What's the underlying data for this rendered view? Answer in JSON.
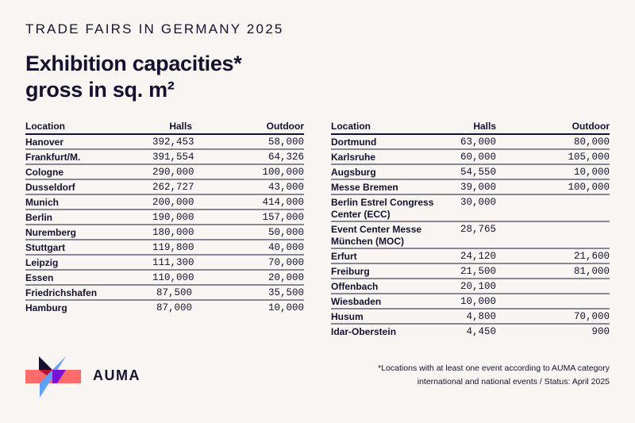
{
  "header": {
    "kicker": "TRADE FAIRS IN GERMANY 2025",
    "title_line1": "Exhibition capacities*",
    "title_line2": "gross in sq. m²"
  },
  "columns": {
    "location": "Location",
    "halls": "Halls",
    "outdoor": "Outdoor"
  },
  "left_table": [
    {
      "location": "Hanover",
      "halls": "392,453",
      "outdoor": "58,000"
    },
    {
      "location": "Frankfurt/M.",
      "halls": "391,554",
      "outdoor": "64,326"
    },
    {
      "location": "Cologne",
      "halls": "290,000",
      "outdoor": "100,000"
    },
    {
      "location": "Dusseldorf",
      "halls": "262,727",
      "outdoor": "43,000"
    },
    {
      "location": "Munich",
      "halls": "200,000",
      "outdoor": "414,000"
    },
    {
      "location": "Berlin",
      "halls": "190,000",
      "outdoor": "157,000"
    },
    {
      "location": "Nuremberg",
      "halls": "180,000",
      "outdoor": "50,000"
    },
    {
      "location": "Stuttgart",
      "halls": "119,800",
      "outdoor": "40,000"
    },
    {
      "location": "Leipzig",
      "halls": "111,300",
      "outdoor": "70,000"
    },
    {
      "location": "Essen",
      "halls": "110,000",
      "outdoor": "20,000"
    },
    {
      "location": "Friedrichshafen",
      "halls": "87,500",
      "outdoor": "35,500"
    },
    {
      "location": "Hamburg",
      "halls": "87,000",
      "outdoor": "10,000"
    }
  ],
  "right_table": [
    {
      "location": "Dortmund",
      "halls": "63,000",
      "outdoor": "80,000"
    },
    {
      "location": "Karlsruhe",
      "halls": "60,000",
      "outdoor": "105,000"
    },
    {
      "location": "Augsburg",
      "halls": "54,550",
      "outdoor": "10,000"
    },
    {
      "location": "Messe Bremen",
      "halls": "39,000",
      "outdoor": "100,000"
    },
    {
      "location": "Berlin Estrel Congress Center (ECC)",
      "halls": "30,000",
      "outdoor": ""
    },
    {
      "location": "Event Center Messe München (MOC)",
      "halls": "28,765",
      "outdoor": ""
    },
    {
      "location": "Erfurt",
      "halls": "24,120",
      "outdoor": "21,600"
    },
    {
      "location": "Freiburg",
      "halls": "21,500",
      "outdoor": "81,000"
    },
    {
      "location": "Offenbach",
      "halls": "20,100",
      "outdoor": ""
    },
    {
      "location": "Wiesbaden",
      "halls": "10,000",
      "outdoor": ""
    },
    {
      "location": "Husum",
      "halls": "4,800",
      "outdoor": "70,000"
    },
    {
      "location": "Idar-Oberstein",
      "halls": "4,450",
      "outdoor": "900"
    }
  ],
  "footer": {
    "brand": "AUMA",
    "footnote_line1": "*Locations with at least one event according to AUMA category",
    "footnote_line2": "international and national events / Status: April 2025"
  },
  "colors": {
    "text": "#15112e",
    "background": "#f9f5f2",
    "logo_red": "#ff6b6b",
    "logo_blue": "#5fa0ff",
    "logo_purple": "#7a12d4"
  }
}
